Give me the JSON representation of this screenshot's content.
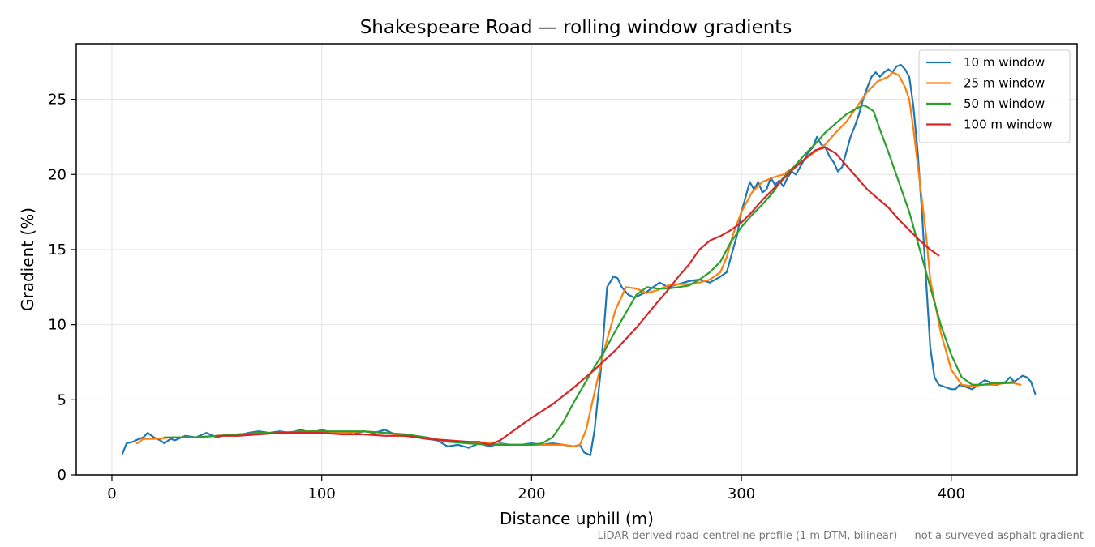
{
  "chart_data": {
    "type": "line",
    "title": "Shakespeare Road — rolling window gradients",
    "xlabel": "Distance uphill (m)",
    "ylabel": "Gradient (%)",
    "footnote": "LiDAR-derived road-centreline profile (1 m DTM, bilinear) — not a surveyed asphalt gradient",
    "xlim": [
      -17,
      460
    ],
    "ylim": [
      0,
      28.7
    ],
    "xticks": [
      0,
      100,
      200,
      300,
      400
    ],
    "yticks": [
      0,
      5,
      10,
      15,
      20,
      25
    ],
    "grid": true,
    "legend_position": "top-right",
    "series": [
      {
        "name": "10 m window",
        "color": "#1f77b4",
        "x": [
          5,
          7,
          10,
          13,
          15,
          17,
          20,
          23,
          25,
          28,
          30,
          35,
          40,
          45,
          50,
          55,
          60,
          65,
          70,
          75,
          80,
          85,
          90,
          95,
          100,
          105,
          110,
          115,
          120,
          125,
          130,
          135,
          140,
          145,
          150,
          155,
          160,
          165,
          170,
          175,
          180,
          185,
          190,
          195,
          200,
          205,
          210,
          215,
          220,
          223,
          225,
          228,
          230,
          233,
          236,
          239,
          241,
          243,
          246,
          249,
          252,
          255,
          258,
          261,
          265,
          270,
          275,
          280,
          285,
          290,
          293,
          296,
          298,
          300,
          302,
          304,
          306,
          308,
          310,
          312,
          314,
          316,
          318,
          320,
          322,
          324,
          326,
          328,
          330,
          332,
          334,
          336,
          338,
          340,
          342,
          344,
          346,
          348,
          350,
          352,
          354,
          356,
          358,
          360,
          362,
          364,
          366,
          368,
          370,
          372,
          374,
          376,
          378,
          380,
          382,
          384,
          386,
          388,
          390,
          392,
          394,
          396,
          398,
          400,
          402,
          404,
          406,
          408,
          410,
          412,
          414,
          416,
          418,
          420,
          422,
          424,
          426,
          428,
          430,
          432,
          434,
          436,
          438,
          440
        ],
        "y": [
          1.4,
          2.1,
          2.2,
          2.4,
          2.5,
          2.8,
          2.5,
          2.3,
          2.1,
          2.4,
          2.3,
          2.6,
          2.5,
          2.8,
          2.5,
          2.7,
          2.6,
          2.8,
          2.9,
          2.8,
          2.9,
          2.8,
          3.0,
          2.8,
          3.0,
          2.8,
          2.9,
          2.7,
          2.9,
          2.8,
          3.0,
          2.7,
          2.6,
          2.5,
          2.4,
          2.3,
          1.9,
          2.0,
          1.8,
          2.1,
          1.9,
          2.1,
          2.0,
          2.0,
          2.1,
          2.0,
          2.1,
          2.0,
          1.9,
          2.0,
          1.5,
          1.3,
          3.0,
          7.0,
          12.5,
          13.2,
          13.1,
          12.5,
          12.0,
          11.8,
          12.0,
          12.2,
          12.5,
          12.8,
          12.5,
          12.7,
          12.9,
          13.0,
          12.8,
          13.2,
          13.5,
          15.0,
          16.0,
          17.5,
          18.5,
          19.5,
          19.0,
          19.5,
          18.8,
          19.0,
          19.8,
          19.3,
          19.6,
          19.2,
          19.8,
          20.2,
          20.0,
          20.5,
          21.0,
          21.5,
          21.8,
          22.5,
          22.0,
          21.8,
          21.2,
          20.8,
          20.2,
          20.5,
          21.5,
          22.5,
          23.2,
          24.0,
          25.0,
          25.8,
          26.5,
          26.8,
          26.5,
          26.8,
          27.0,
          26.8,
          27.2,
          27.3,
          27.0,
          26.5,
          24.5,
          21.5,
          17.5,
          13.0,
          8.5,
          6.5,
          6.0,
          5.9,
          5.8,
          5.7,
          5.7,
          6.0,
          5.9,
          5.8,
          5.7,
          5.9,
          6.1,
          6.3,
          6.2,
          6.0,
          6.0,
          6.1,
          6.2,
          6.5,
          6.2,
          6.4,
          6.6,
          6.5,
          6.2,
          5.4
        ]
      },
      {
        "name": "25 m window",
        "color": "#ff7f0e",
        "x": [
          12,
          15,
          20,
          30,
          40,
          50,
          60,
          70,
          80,
          90,
          100,
          110,
          120,
          130,
          140,
          150,
          160,
          170,
          180,
          190,
          200,
          210,
          215,
          220,
          223,
          226,
          230,
          235,
          240,
          245,
          250,
          255,
          260,
          265,
          270,
          275,
          280,
          285,
          290,
          293,
          296,
          300,
          305,
          310,
          315,
          320,
          325,
          330,
          335,
          340,
          345,
          350,
          355,
          360,
          365,
          370,
          372,
          375,
          378,
          380,
          382,
          385,
          388,
          390,
          395,
          400,
          405,
          410,
          415,
          420,
          425,
          430,
          433
        ],
        "y": [
          2.1,
          2.4,
          2.4,
          2.5,
          2.5,
          2.6,
          2.7,
          2.8,
          2.8,
          2.9,
          2.9,
          2.8,
          2.9,
          2.8,
          2.6,
          2.4,
          2.3,
          2.1,
          2.1,
          2.0,
          2.0,
          2.0,
          2.0,
          1.9,
          2.0,
          3.0,
          5.5,
          8.5,
          11.0,
          12.5,
          12.4,
          12.1,
          12.3,
          12.6,
          12.7,
          12.7,
          12.8,
          13.0,
          13.5,
          14.5,
          16.0,
          17.5,
          18.8,
          19.5,
          19.8,
          20.0,
          20.5,
          21.0,
          21.5,
          22.0,
          22.8,
          23.5,
          24.5,
          25.5,
          26.2,
          26.5,
          26.8,
          26.6,
          25.8,
          25.0,
          23.0,
          19.5,
          16.0,
          13.0,
          9.5,
          7.0,
          6.0,
          5.9,
          6.0,
          6.0,
          6.1,
          6.1,
          6.0
        ]
      },
      {
        "name": "50 m window",
        "color": "#2ca02c",
        "x": [
          25,
          30,
          40,
          50,
          60,
          70,
          80,
          90,
          100,
          110,
          120,
          130,
          140,
          150,
          160,
          170,
          180,
          190,
          200,
          205,
          210,
          215,
          220,
          225,
          230,
          235,
          240,
          245,
          250,
          255,
          260,
          265,
          270,
          275,
          280,
          285,
          290,
          295,
          300,
          305,
          310,
          315,
          320,
          325,
          330,
          335,
          340,
          345,
          350,
          355,
          358,
          360,
          363,
          366,
          370,
          375,
          380,
          385,
          390,
          395,
          400,
          405,
          410,
          415,
          420,
          425,
          430
        ],
        "y": [
          2.5,
          2.5,
          2.5,
          2.6,
          2.7,
          2.8,
          2.8,
          2.9,
          2.9,
          2.9,
          2.9,
          2.8,
          2.7,
          2.5,
          2.2,
          2.1,
          2.0,
          2.0,
          2.0,
          2.1,
          2.5,
          3.5,
          4.8,
          6.0,
          7.2,
          8.3,
          9.6,
          10.8,
          12.0,
          12.5,
          12.4,
          12.4,
          12.5,
          12.6,
          13.0,
          13.5,
          14.2,
          15.5,
          16.5,
          17.3,
          18.0,
          18.8,
          19.8,
          20.5,
          21.3,
          22.0,
          22.8,
          23.4,
          24.0,
          24.4,
          24.6,
          24.5,
          24.2,
          23.0,
          21.5,
          19.5,
          17.5,
          15.0,
          12.5,
          10.0,
          8.0,
          6.5,
          6.0,
          6.0,
          6.1,
          6.1,
          6.2
        ]
      },
      {
        "name": "100 m window",
        "color": "#d62728",
        "x": [
          50,
          60,
          70,
          80,
          90,
          100,
          110,
          120,
          130,
          140,
          150,
          160,
          170,
          175,
          180,
          185,
          190,
          195,
          200,
          210,
          220,
          230,
          240,
          250,
          260,
          265,
          270,
          275,
          280,
          285,
          290,
          295,
          300,
          305,
          310,
          315,
          320,
          325,
          330,
          335,
          340,
          345,
          350,
          355,
          360,
          365,
          370,
          375,
          380,
          385,
          390,
          394
        ],
        "y": [
          2.6,
          2.6,
          2.7,
          2.8,
          2.8,
          2.8,
          2.7,
          2.7,
          2.6,
          2.6,
          2.4,
          2.3,
          2.2,
          2.2,
          2.0,
          2.3,
          2.8,
          3.3,
          3.8,
          4.7,
          5.8,
          7.0,
          8.3,
          9.8,
          11.5,
          12.3,
          13.2,
          14.0,
          15.0,
          15.6,
          15.9,
          16.3,
          16.8,
          17.5,
          18.3,
          19.0,
          19.7,
          20.4,
          21.0,
          21.6,
          21.8,
          21.4,
          20.6,
          19.8,
          19.0,
          18.4,
          17.8,
          17.0,
          16.3,
          15.6,
          15.0,
          14.6
        ]
      }
    ]
  }
}
